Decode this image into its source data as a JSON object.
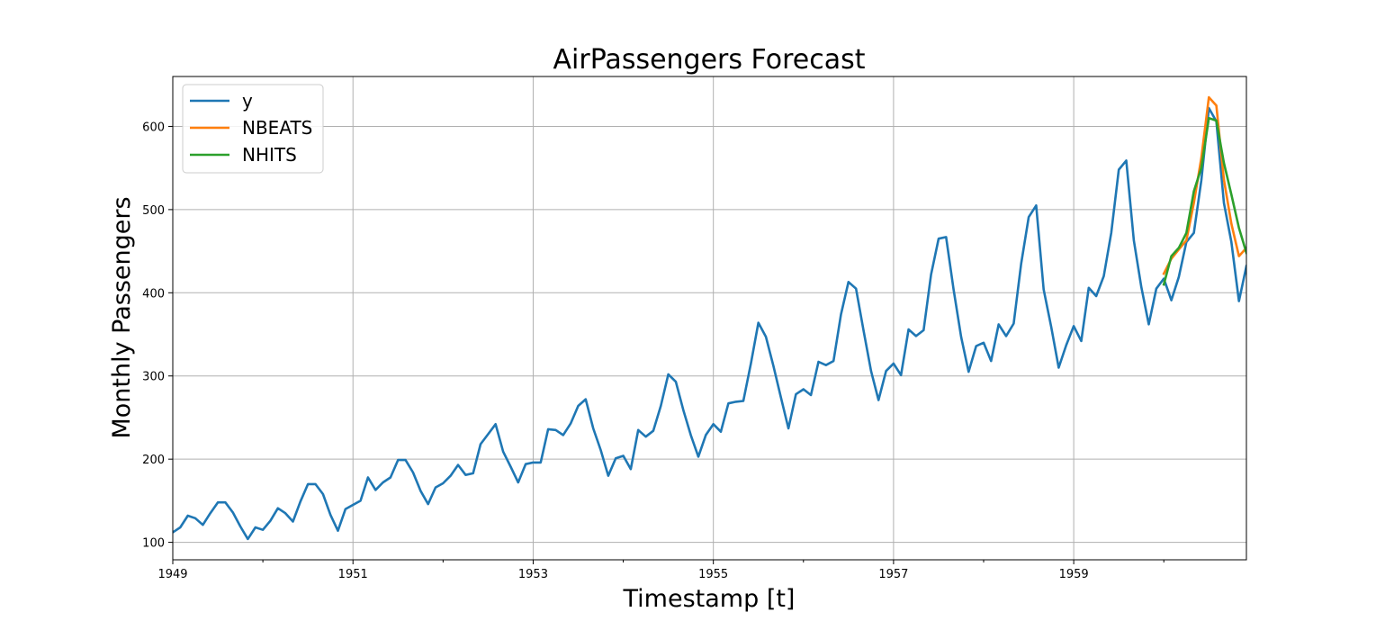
{
  "chart_data": {
    "type": "line",
    "title": "AirPassengers Forecast",
    "xlabel": "Timestamp [t]",
    "ylabel": "Monthly Passengers",
    "x_ticks": [
      "1949",
      "1951",
      "1953",
      "1955",
      "1957",
      "1959"
    ],
    "y_ticks": [
      100,
      200,
      300,
      400,
      500,
      600
    ],
    "xlim": [
      "1949-01",
      "1960-12"
    ],
    "ylim": [
      79,
      660
    ],
    "grid": true,
    "legend": "top-left",
    "series": [
      {
        "name": "y",
        "color": "#1f77b4",
        "start": "1949-01",
        "values": [
          112,
          118,
          132,
          129,
          121,
          135,
          148,
          148,
          136,
          119,
          104,
          118,
          115,
          126,
          141,
          135,
          125,
          149,
          170,
          170,
          158,
          133,
          114,
          140,
          145,
          150,
          178,
          163,
          172,
          178,
          199,
          199,
          184,
          162,
          146,
          166,
          171,
          180,
          193,
          181,
          183,
          218,
          230,
          242,
          209,
          191,
          172,
          194,
          196,
          196,
          236,
          235,
          229,
          243,
          264,
          272,
          237,
          211,
          180,
          201,
          204,
          188,
          235,
          227,
          234,
          264,
          302,
          293,
          259,
          229,
          203,
          229,
          242,
          233,
          267,
          269,
          270,
          315,
          364,
          347,
          312,
          274,
          237,
          278,
          284,
          277,
          317,
          313,
          318,
          374,
          413,
          405,
          355,
          306,
          271,
          306,
          315,
          301,
          356,
          348,
          355,
          422,
          465,
          467,
          404,
          347,
          305,
          336,
          340,
          318,
          362,
          348,
          363,
          435,
          491,
          505,
          404,
          359,
          310,
          337,
          360,
          342,
          406,
          396,
          420,
          472,
          548,
          559,
          463,
          407,
          362,
          405,
          417,
          391,
          419,
          461,
          472,
          535,
          622,
          606,
          508,
          461,
          390,
          432
        ]
      },
      {
        "name": "NBEATS",
        "color": "#ff7f0e",
        "start": "1960-01",
        "values": [
          423,
          441,
          452,
          463,
          508,
          562,
          635,
          625,
          536,
          483,
          444,
          454
        ]
      },
      {
        "name": "NHITS",
        "color": "#2ca02c",
        "start": "1960-01",
        "values": [
          410,
          444,
          454,
          472,
          522,
          550,
          610,
          607,
          556,
          518,
          478,
          448
        ]
      }
    ]
  }
}
